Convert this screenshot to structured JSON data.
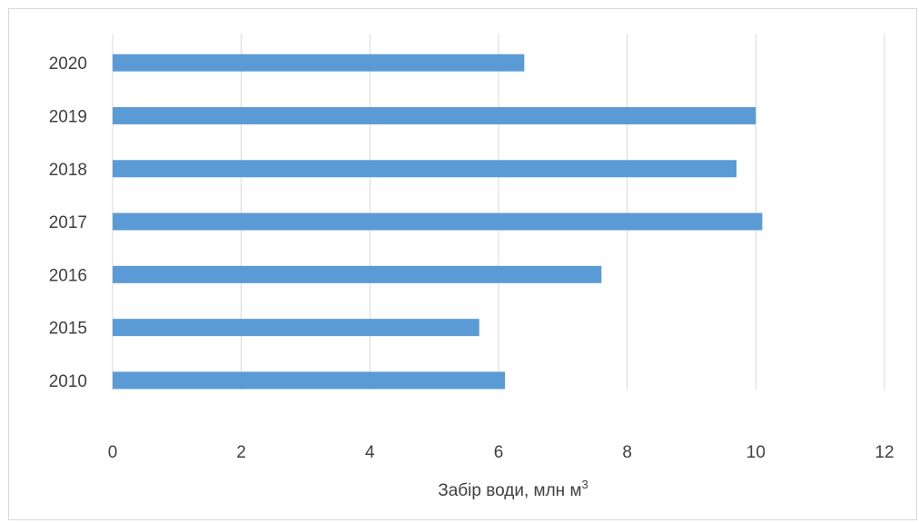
{
  "chart_data": {
    "type": "bar",
    "orientation": "horizontal",
    "categories": [
      "2010",
      "2015",
      "2016",
      "2017",
      "2018",
      "2019",
      "2020"
    ],
    "values": [
      6.1,
      5.7,
      7.6,
      10.1,
      9.7,
      10.0,
      6.4
    ],
    "title": "",
    "xlabel": "Забір води, млн м",
    "xlabel_superscript": "3",
    "ylabel": "",
    "xlim": [
      0,
      12
    ],
    "xticks": [
      "0",
      "2",
      "4",
      "6",
      "8",
      "10",
      "12"
    ],
    "grid": "vertical",
    "legend": "none",
    "bar_color": "#5b9bd5",
    "grid_color": "#d9d9d9",
    "text_color": "#404040"
  }
}
